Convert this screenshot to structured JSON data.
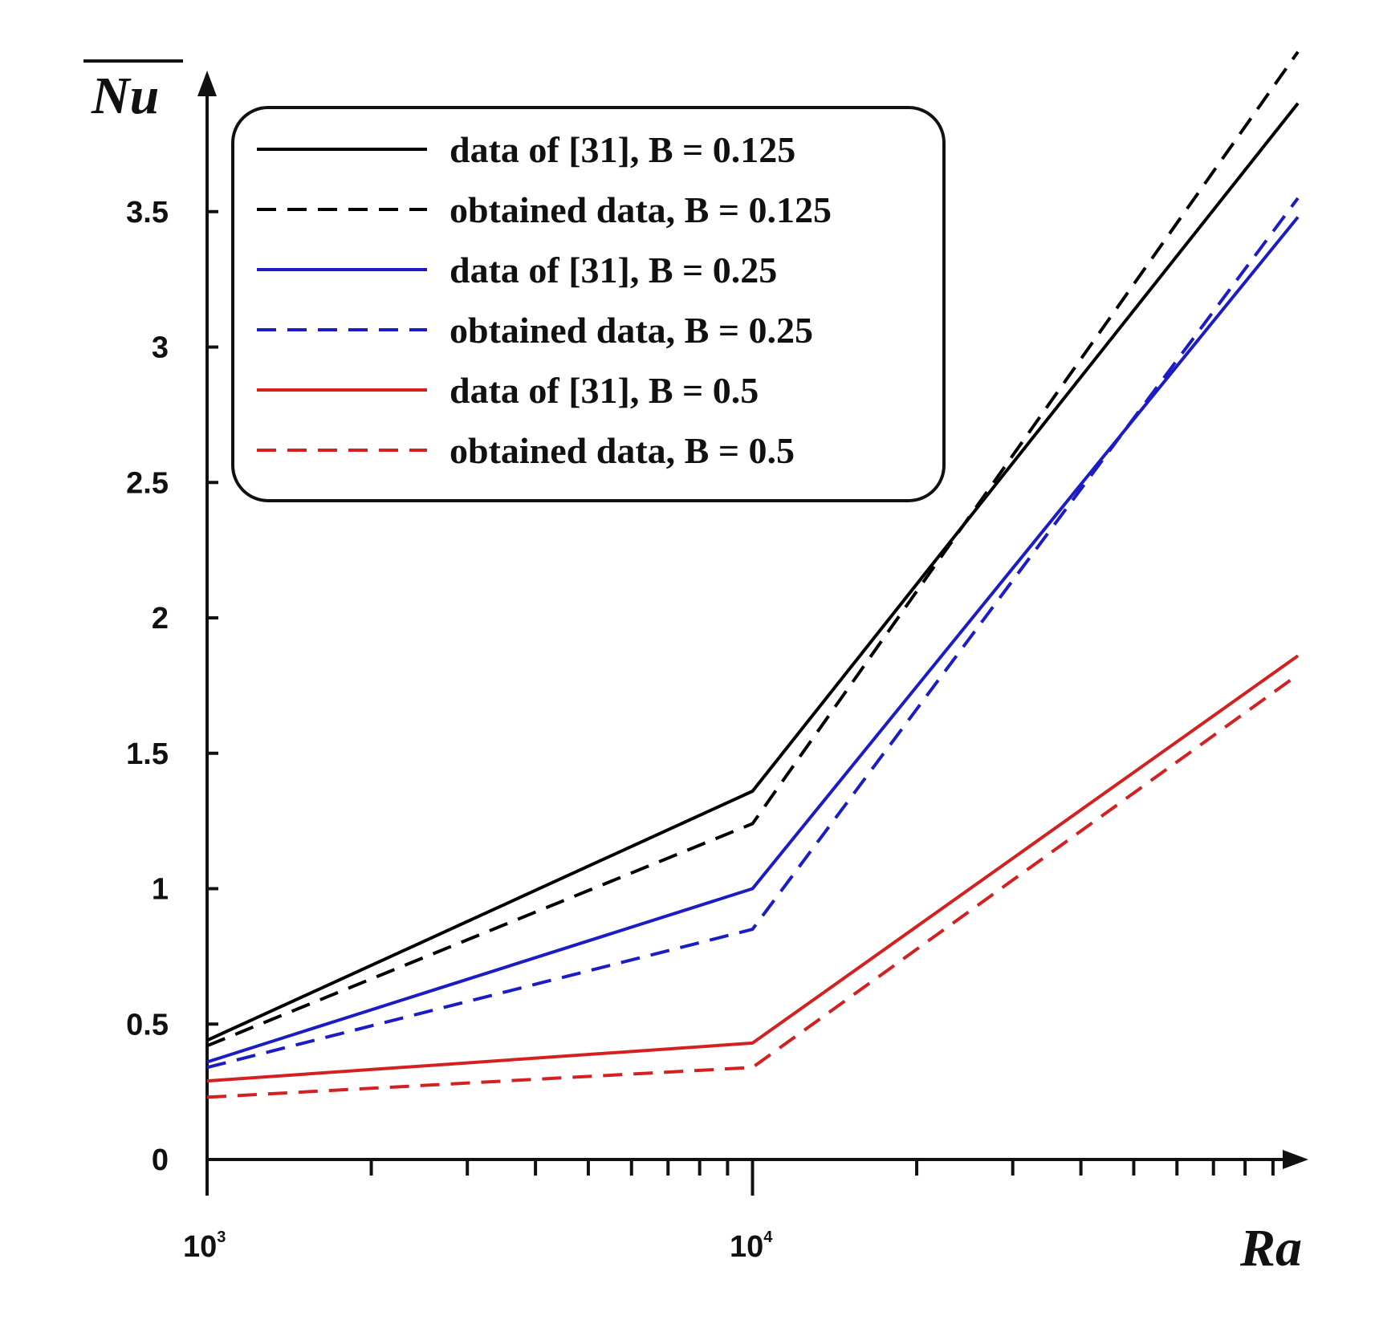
{
  "chart_data": {
    "type": "line",
    "title": "",
    "xlabel": "Ra",
    "ylabel": "Nu",
    "xscale": "log",
    "xlim": [
      1000,
      100000
    ],
    "ylim": [
      0,
      4
    ],
    "x": [
      1000,
      10000,
      100000
    ],
    "x_tick_labels": [
      {
        "base": "10",
        "exp": "3"
      },
      {
        "base": "10",
        "exp": "4"
      }
    ],
    "y_ticks": [
      {
        "value": 0,
        "label": "0"
      },
      {
        "value": 0.5,
        "label": "0.5"
      },
      {
        "value": 1,
        "label": "1"
      },
      {
        "value": 1.5,
        "label": "1.5"
      },
      {
        "value": 2,
        "label": "2"
      },
      {
        "value": 2.5,
        "label": "2.5"
      },
      {
        "value": 3,
        "label": "3"
      },
      {
        "value": 3.5,
        "label": "3.5"
      }
    ],
    "grid": false,
    "legend_position": "top-left",
    "series": [
      {
        "name": "data of [31], B = 0.125",
        "values": [
          0.44,
          1.36,
          3.9
        ],
        "color": "#000000",
        "dash": false
      },
      {
        "name": "obtained data, B = 0.125",
        "values": [
          0.42,
          1.24,
          4.09
        ],
        "color": "#000000",
        "dash": true
      },
      {
        "name": "data of [31], B = 0.25",
        "values": [
          0.36,
          1.0,
          3.48
        ],
        "color": "#1c1cc4",
        "dash": false
      },
      {
        "name": "obtained data, B = 0.25",
        "values": [
          0.34,
          0.85,
          3.55
        ],
        "color": "#1c1cc4",
        "dash": true
      },
      {
        "name": "data of [31], B = 0.5",
        "values": [
          0.29,
          0.43,
          1.86
        ],
        "color": "#d42020",
        "dash": false
      },
      {
        "name": "obtained data, B = 0.5",
        "values": [
          0.23,
          0.34,
          1.79
        ],
        "color": "#d42020",
        "dash": true
      }
    ]
  }
}
